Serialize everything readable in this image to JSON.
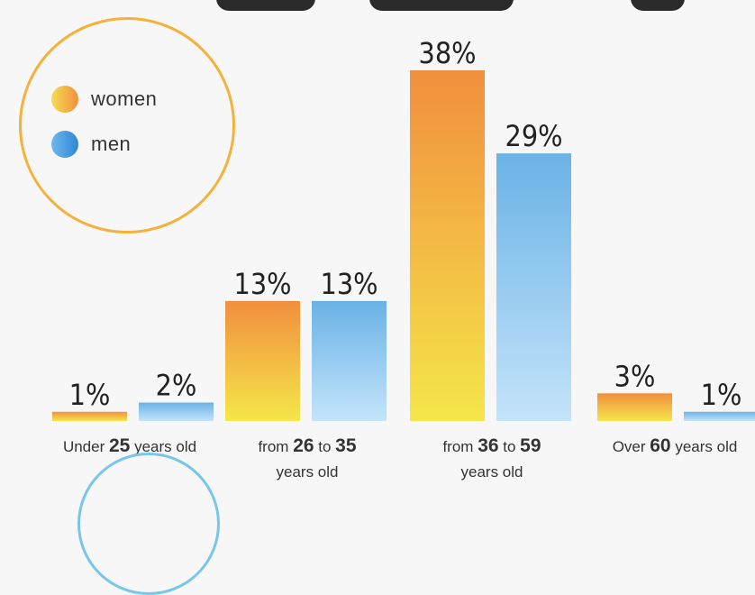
{
  "chart_data": {
    "type": "bar",
    "categories": [
      {
        "pre": "Under ",
        "num1": "25",
        "mid": " years old",
        "num2": "",
        "line2": ""
      },
      {
        "pre": "from ",
        "num1": "26",
        "mid": " to ",
        "num2": "35",
        "line2": "years old"
      },
      {
        "pre": "from ",
        "num1": "36",
        "mid": " to ",
        "num2": "59",
        "line2": "years old"
      },
      {
        "pre": "Over ",
        "num1": "60",
        "mid": " years old",
        "num2": "",
        "line2": ""
      }
    ],
    "series": [
      {
        "name": "women",
        "values": [
          1,
          13,
          38,
          3
        ],
        "labels": [
          "1%",
          "13%",
          "38%",
          "3%"
        ]
      },
      {
        "name": "men",
        "values": [
          2,
          13,
          29,
          1
        ],
        "labels": [
          "2%",
          "13%",
          "29%",
          "1%"
        ]
      }
    ],
    "ylim": [
      0,
      38
    ],
    "legend_position": "top-left",
    "colors": {
      "women_top": "#f18f3e",
      "women_bottom": "#f5e64a",
      "men_top": "#6ab2e6",
      "men_bottom": "#c4e4fa",
      "legend_ring": "#f4b23a",
      "bottom_ring": "#78c6ea"
    }
  }
}
